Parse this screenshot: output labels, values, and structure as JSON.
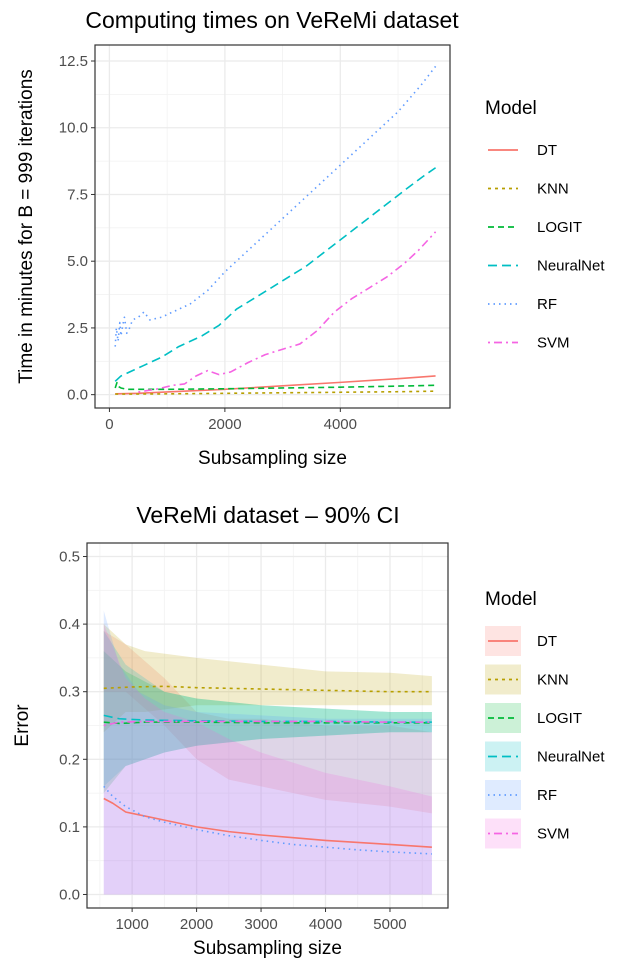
{
  "chart_data": [
    {
      "type": "line",
      "title": "Computing times on VeReMi dataset",
      "xlabel": "Subsampling size",
      "ylabel": "Time in minutes for B = 999 iterations",
      "xlim": [
        -250,
        5900
      ],
      "ylim": [
        -0.5,
        13.1
      ],
      "xticks": [
        0,
        2000,
        4000
      ],
      "xtick_labels": [
        "0",
        "2000",
        "4000"
      ],
      "yticks": [
        0,
        2.5,
        5,
        7.5,
        10,
        12.5
      ],
      "ytick_labels": [
        "0.0",
        "2.5",
        "5.0",
        "7.5",
        "10.0",
        "12.5"
      ],
      "grid": true,
      "legend": {
        "title": "Model",
        "position": "right"
      },
      "series": [
        {
          "name": "DT",
          "color": "#f8766d",
          "dash": "solid",
          "points": [
            [
              100,
              0.03
            ],
            [
              500,
              0.05
            ],
            [
              1000,
              0.1
            ],
            [
              2000,
              0.2
            ],
            [
              3000,
              0.33
            ],
            [
              4000,
              0.46
            ],
            [
              5000,
              0.6
            ],
            [
              5650,
              0.7
            ]
          ]
        },
        {
          "name": "KNN",
          "color": "#b79f00",
          "dash": "dot",
          "points": [
            [
              100,
              0.02
            ],
            [
              1000,
              0.03
            ],
            [
              2000,
              0.05
            ],
            [
              3000,
              0.07
            ],
            [
              4000,
              0.09
            ],
            [
              5000,
              0.11
            ],
            [
              5650,
              0.13
            ]
          ]
        },
        {
          "name": "LOGIT",
          "color": "#00ba38",
          "dash": "dash",
          "points": [
            [
              100,
              0.25
            ],
            [
              130,
              0.45
            ],
            [
              160,
              0.3
            ],
            [
              200,
              0.25
            ],
            [
              300,
              0.2
            ],
            [
              500,
              0.2
            ],
            [
              1000,
              0.2
            ],
            [
              2000,
              0.22
            ],
            [
              3000,
              0.25
            ],
            [
              4000,
              0.28
            ],
            [
              5000,
              0.32
            ],
            [
              5650,
              0.35
            ]
          ]
        },
        {
          "name": "NeuralNet",
          "color": "#00bfc4",
          "dash": "longdash",
          "points": [
            [
              100,
              0.5
            ],
            [
              200,
              0.7
            ],
            [
              400,
              0.9
            ],
            [
              600,
              1.1
            ],
            [
              900,
              1.4
            ],
            [
              1200,
              1.8
            ],
            [
              1600,
              2.2
            ],
            [
              1900,
              2.6
            ],
            [
              2200,
              3.2
            ],
            [
              2500,
              3.6
            ],
            [
              2800,
              4.0
            ],
            [
              3100,
              4.4
            ],
            [
              3400,
              4.8
            ],
            [
              3700,
              5.3
            ],
            [
              4000,
              5.8
            ],
            [
              4300,
              6.3
            ],
            [
              4600,
              6.8
            ],
            [
              4900,
              7.3
            ],
            [
              5200,
              7.8
            ],
            [
              5450,
              8.2
            ],
            [
              5650,
              8.5
            ]
          ]
        },
        {
          "name": "RF",
          "color": "#619cff",
          "dash": "dotted",
          "points": [
            [
              100,
              1.8
            ],
            [
              120,
              2.5
            ],
            [
              150,
              2.0
            ],
            [
              180,
              2.7
            ],
            [
              200,
              2.2
            ],
            [
              230,
              2.6
            ],
            [
              260,
              2.9
            ],
            [
              300,
              2.3
            ],
            [
              350,
              2.5
            ],
            [
              400,
              2.8
            ],
            [
              500,
              2.9
            ],
            [
              600,
              3.1
            ],
            [
              700,
              2.8
            ],
            [
              900,
              2.9
            ],
            [
              1100,
              3.1
            ],
            [
              1400,
              3.4
            ],
            [
              1700,
              3.9
            ],
            [
              2000,
              4.6
            ],
            [
              2500,
              5.6
            ],
            [
              3000,
              6.6
            ],
            [
              3500,
              7.6
            ],
            [
              4000,
              8.6
            ],
            [
              4500,
              9.6
            ],
            [
              5000,
              10.6
            ],
            [
              5400,
              11.6
            ],
            [
              5650,
              12.3
            ]
          ]
        },
        {
          "name": "SVM",
          "color": "#f564e3",
          "dash": "dotdash",
          "points": [
            [
              500,
              0.1
            ],
            [
              800,
              0.2
            ],
            [
              1100,
              0.35
            ],
            [
              1300,
              0.4
            ],
            [
              1500,
              0.7
            ],
            [
              1700,
              0.9
            ],
            [
              1900,
              0.75
            ],
            [
              2100,
              0.85
            ],
            [
              2400,
              1.2
            ],
            [
              2700,
              1.5
            ],
            [
              3000,
              1.7
            ],
            [
              3300,
              1.9
            ],
            [
              3600,
              2.4
            ],
            [
              3900,
              3.1
            ],
            [
              4200,
              3.6
            ],
            [
              4500,
              4.0
            ],
            [
              4800,
              4.4
            ],
            [
              5100,
              4.9
            ],
            [
              5350,
              5.4
            ],
            [
              5650,
              6.1
            ]
          ]
        }
      ]
    },
    {
      "type": "line",
      "title": "VeReMi dataset – 90% CI",
      "xlabel": "Subsampling size",
      "ylabel": "Error",
      "xlim": [
        300,
        5900
      ],
      "ylim": [
        -0.02,
        0.52
      ],
      "xticks": [
        1000,
        2000,
        3000,
        4000,
        5000
      ],
      "xtick_labels": [
        "1000",
        "2000",
        "3000",
        "4000",
        "5000"
      ],
      "yticks": [
        0,
        0.1,
        0.2,
        0.3,
        0.4,
        0.5
      ],
      "ytick_labels": [
        "0.0",
        "0.1",
        "0.2",
        "0.3",
        "0.4",
        "0.5"
      ],
      "grid": true,
      "legend": {
        "title": "Model",
        "position": "right"
      },
      "series": [
        {
          "name": "DT",
          "color": "#f8766d",
          "dash": "solid",
          "points": [
            [
              560,
              0.142
            ],
            [
              700,
              0.135
            ],
            [
              900,
              0.122
            ],
            [
              1200,
              0.116
            ],
            [
              1500,
              0.11
            ],
            [
              2000,
              0.1
            ],
            [
              2500,
              0.093
            ],
            [
              3000,
              0.088
            ],
            [
              3500,
              0.084
            ],
            [
              4000,
              0.08
            ],
            [
              4500,
              0.077
            ],
            [
              5000,
              0.074
            ],
            [
              5650,
              0.07
            ]
          ],
          "band": [
            [
              560,
              0.3,
              0.39
            ],
            [
              900,
              0.3,
              0.37
            ],
            [
              1500,
              0.25,
              0.32
            ],
            [
              2000,
              0.2,
              0.27
            ],
            [
              2500,
              0.17,
              0.26
            ],
            [
              3000,
              0.16,
              0.26
            ],
            [
              4000,
              0.14,
              0.25
            ],
            [
              5000,
              0.13,
              0.25
            ],
            [
              5650,
              0.12,
              0.24
            ]
          ]
        },
        {
          "name": "KNN",
          "color": "#b79f00",
          "dash": "dot",
          "points": [
            [
              560,
              0.305
            ],
            [
              1000,
              0.307
            ],
            [
              1500,
              0.308
            ],
            [
              2000,
              0.306
            ],
            [
              2500,
              0.305
            ],
            [
              3000,
              0.304
            ],
            [
              3500,
              0.303
            ],
            [
              4000,
              0.302
            ],
            [
              4500,
              0.301
            ],
            [
              5000,
              0.3
            ],
            [
              5650,
              0.3
            ]
          ],
          "band": [
            [
              560,
              0.24,
              0.4
            ],
            [
              900,
              0.27,
              0.37
            ],
            [
              1200,
              0.27,
              0.36
            ],
            [
              2000,
              0.28,
              0.35
            ],
            [
              3000,
              0.28,
              0.34
            ],
            [
              4000,
              0.28,
              0.33
            ],
            [
              5000,
              0.28,
              0.328
            ],
            [
              5650,
              0.28,
              0.323
            ]
          ]
        },
        {
          "name": "LOGIT",
          "color": "#00ba38",
          "dash": "dash",
          "points": [
            [
              560,
              0.255
            ],
            [
              800,
              0.253
            ],
            [
              1200,
              0.255
            ],
            [
              2000,
              0.255
            ],
            [
              3000,
              0.254
            ],
            [
              4000,
              0.254
            ],
            [
              5000,
              0.254
            ],
            [
              5650,
              0.254
            ]
          ],
          "band": [
            [
              560,
              0.15,
              0.36
            ],
            [
              900,
              0.19,
              0.33
            ],
            [
              1500,
              0.21,
              0.3
            ],
            [
              2000,
              0.22,
              0.29
            ],
            [
              3000,
              0.23,
              0.28
            ],
            [
              4000,
              0.235,
              0.275
            ],
            [
              5000,
              0.24,
              0.27
            ],
            [
              5650,
              0.24,
              0.27
            ]
          ]
        },
        {
          "name": "NeuralNet",
          "color": "#00bfc4",
          "dash": "longdash",
          "points": [
            [
              560,
              0.265
            ],
            [
              800,
              0.26
            ],
            [
              1200,
              0.258
            ],
            [
              2000,
              0.257
            ],
            [
              3000,
              0.256
            ],
            [
              4000,
              0.256
            ],
            [
              5000,
              0.255
            ],
            [
              5650,
              0.255
            ]
          ],
          "band": [
            [
              560,
              0.16,
              0.39
            ],
            [
              900,
              0.19,
              0.34
            ],
            [
              1500,
              0.21,
              0.3
            ],
            [
              2000,
              0.22,
              0.29
            ],
            [
              3000,
              0.23,
              0.28
            ],
            [
              4000,
              0.235,
              0.275
            ],
            [
              5000,
              0.24,
              0.27
            ],
            [
              5650,
              0.24,
              0.27
            ]
          ]
        },
        {
          "name": "RF",
          "color": "#619cff",
          "dash": "dotted",
          "points": [
            [
              560,
              0.16
            ],
            [
              700,
              0.145
            ],
            [
              900,
              0.13
            ],
            [
              1200,
              0.115
            ],
            [
              1500,
              0.107
            ],
            [
              2000,
              0.096
            ],
            [
              2500,
              0.087
            ],
            [
              3000,
              0.08
            ],
            [
              3500,
              0.074
            ],
            [
              4000,
              0.07
            ],
            [
              4500,
              0.066
            ],
            [
              5000,
              0.063
            ],
            [
              5650,
              0.06
            ]
          ],
          "band": [
            [
              560,
              0.0,
              0.42
            ],
            [
              800,
              0.0,
              0.34
            ],
            [
              1100,
              0.0,
              0.3
            ],
            [
              1500,
              0.0,
              0.28
            ],
            [
              2000,
              0.0,
              0.27
            ],
            [
              3000,
              0.0,
              0.265
            ],
            [
              4000,
              0.0,
              0.26
            ],
            [
              5000,
              0.0,
              0.26
            ],
            [
              5650,
              0.0,
              0.26
            ]
          ]
        },
        {
          "name": "SVM",
          "color": "#f564e3",
          "dash": "dotdash",
          "points": [
            [
              560,
              0.25
            ],
            [
              800,
              0.255
            ],
            [
              1200,
              0.256
            ],
            [
              2000,
              0.256
            ],
            [
              3000,
              0.256
            ],
            [
              4000,
              0.256
            ],
            [
              5000,
              0.255
            ],
            [
              5650,
              0.255
            ]
          ],
          "band": [
            [
              560,
              0.0,
              0.4
            ],
            [
              900,
              0.0,
              0.32
            ],
            [
              1200,
              0.0,
              0.29
            ],
            [
              1500,
              0.0,
              0.27
            ],
            [
              2000,
              0.0,
              0.255
            ],
            [
              2500,
              0.0,
              0.23
            ],
            [
              3000,
              0.0,
              0.21
            ],
            [
              4000,
              0.0,
              0.18
            ],
            [
              5000,
              0.0,
              0.16
            ],
            [
              5650,
              0.0,
              0.145
            ]
          ]
        }
      ]
    }
  ]
}
